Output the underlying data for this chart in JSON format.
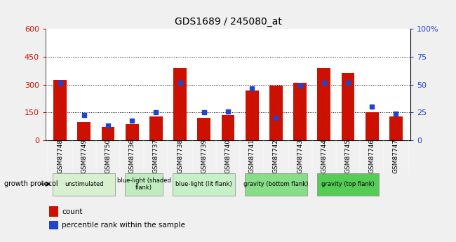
{
  "title": "GDS1689 / 245080_at",
  "categories": [
    "GSM87748",
    "GSM87749",
    "GSM87750",
    "GSM87736",
    "GSM87737",
    "GSM87738",
    "GSM87739",
    "GSM87740",
    "GSM87741",
    "GSM87742",
    "GSM87743",
    "GSM87744",
    "GSM87745",
    "GSM87746",
    "GSM87747"
  ],
  "counts": [
    325,
    100,
    73,
    88,
    130,
    390,
    123,
    138,
    270,
    295,
    310,
    390,
    365,
    152,
    128
  ],
  "percentiles": [
    52,
    23,
    13,
    18,
    25,
    52,
    25,
    26,
    47,
    20,
    49,
    52,
    52,
    30,
    24
  ],
  "ylim_left": [
    0,
    600
  ],
  "ylim_right": [
    0,
    100
  ],
  "yticks_left": [
    0,
    150,
    300,
    450,
    600
  ],
  "yticks_right": [
    0,
    25,
    50,
    75,
    100
  ],
  "bar_color": "#cc1100",
  "dot_color": "#2244cc",
  "group_definitions": [
    {
      "start": 0,
      "end": 2,
      "label": "unstimulated",
      "color": "#d8f0d0"
    },
    {
      "start": 3,
      "end": 4,
      "label": "blue-light (shaded\nflank)",
      "color": "#c0ecc0"
    },
    {
      "start": 5,
      "end": 7,
      "label": "blue-light (lit flank)",
      "color": "#c8f0c8"
    },
    {
      "start": 8,
      "end": 10,
      "label": "gravity (bottom flank)",
      "color": "#88dd88"
    },
    {
      "start": 11,
      "end": 13,
      "label": "gravity (top flank)",
      "color": "#55cc55"
    }
  ],
  "growth_protocol_label": "growth protocol",
  "legend_count_label": "count",
  "legend_pct_label": "percentile rank within the sample",
  "xtick_bg_color": "#c0c0c0",
  "fig_bg_color": "#f0f0f0"
}
